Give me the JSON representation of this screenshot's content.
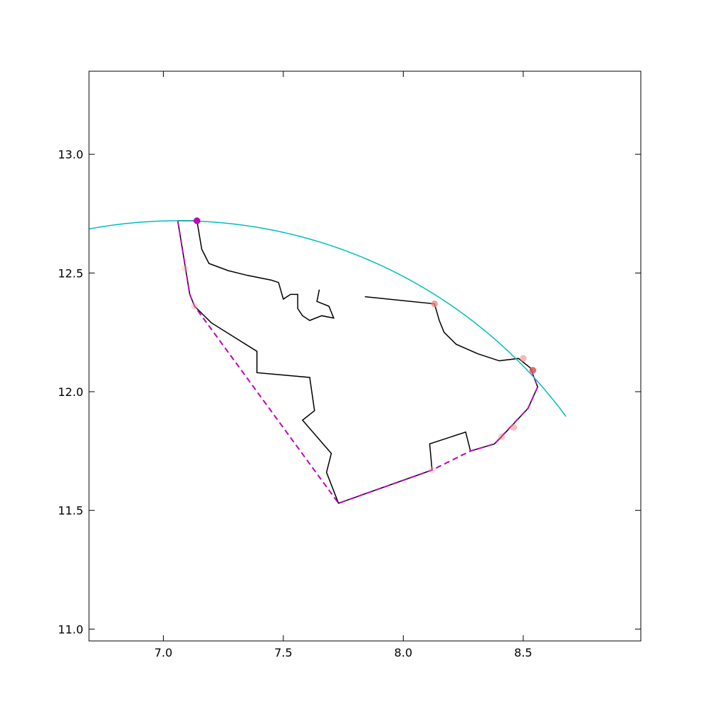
{
  "chart_data": {
    "type": "line",
    "title": "",
    "xlabel": "",
    "ylabel": "",
    "xlim": [
      6.69,
      8.99
    ],
    "ylim": [
      10.95,
      13.35
    ],
    "xticks": [
      7.0,
      7.5,
      8.0,
      8.5
    ],
    "xtick_labels": [
      "7.0",
      "7.5",
      "8.0",
      "8.5"
    ],
    "yticks": [
      11.0,
      11.5,
      12.0,
      12.5,
      13.0
    ],
    "ytick_labels": [
      "11.0",
      "11.5",
      "12.0",
      "12.5",
      "13.0"
    ],
    "grid": false,
    "series": [
      {
        "style": "solid",
        "color": "#000000",
        "paths": [
          [
            [
              7.13,
              12.72
            ],
            [
              7.06,
              12.72
            ],
            [
              7.11,
              12.41
            ],
            [
              7.13,
              12.36
            ],
            [
              7.2,
              12.29
            ],
            [
              7.39,
              12.17
            ],
            [
              7.39,
              12.08
            ],
            [
              7.61,
              12.06
            ],
            [
              7.63,
              11.92
            ],
            [
              7.58,
              11.88
            ],
            [
              7.7,
              11.74
            ],
            [
              7.68,
              11.66
            ],
            [
              7.73,
              11.53
            ],
            [
              8.12,
              11.67
            ],
            [
              8.11,
              11.78
            ],
            [
              8.26,
              11.83
            ],
            [
              8.28,
              11.75
            ],
            [
              8.38,
              11.78
            ],
            [
              8.4,
              11.8
            ],
            [
              8.52,
              11.93
            ],
            [
              8.56,
              12.02
            ],
            [
              8.53,
              12.1
            ],
            [
              8.48,
              12.14
            ],
            [
              8.4,
              12.13
            ],
            [
              8.31,
              12.16
            ],
            [
              8.22,
              12.2
            ],
            [
              8.17,
              12.25
            ],
            [
              8.15,
              12.3
            ],
            [
              8.13,
              12.37
            ],
            [
              7.84,
              12.4
            ]
          ],
          [
            [
              7.14,
              12.72
            ],
            [
              7.16,
              12.6
            ],
            [
              7.19,
              12.54
            ],
            [
              7.27,
              12.51
            ],
            [
              7.35,
              12.49
            ],
            [
              7.45,
              12.47
            ],
            [
              7.48,
              12.46
            ],
            [
              7.5,
              12.39
            ],
            [
              7.53,
              12.41
            ],
            [
              7.56,
              12.41
            ],
            [
              7.56,
              12.35
            ],
            [
              7.58,
              12.32
            ],
            [
              7.61,
              12.3
            ],
            [
              7.66,
              12.32
            ],
            [
              7.71,
              12.31
            ],
            [
              7.69,
              12.36
            ],
            [
              7.64,
              12.38
            ],
            [
              7.65,
              12.43
            ]
          ]
        ]
      },
      {
        "style": "dashed",
        "color": "#bf00bf",
        "points": [
          [
            7.06,
            12.72
          ],
          [
            7.11,
            12.41
          ],
          [
            7.13,
            12.36
          ],
          [
            7.73,
            11.53
          ],
          [
            8.12,
            11.67
          ],
          [
            8.28,
            11.75
          ],
          [
            8.38,
            11.78
          ],
          [
            8.52,
            11.93
          ],
          [
            8.56,
            12.02
          ],
          [
            8.53,
            12.1
          ]
        ]
      },
      {
        "style": "arc",
        "color": "#00bfbf",
        "center": [
          7.06,
          10.72
        ],
        "radius": 2.0
      }
    ],
    "markers": [
      {
        "x": 8.13,
        "y": 12.37,
        "color": "#f08080",
        "opacity": 0.75
      },
      {
        "x": 8.5,
        "y": 12.14,
        "color": "#f08080",
        "opacity": 0.55
      },
      {
        "x": 8.54,
        "y": 12.09,
        "color": "#e05050",
        "opacity": 0.85
      },
      {
        "x": 8.46,
        "y": 11.85,
        "color": "#f08080",
        "opacity": 0.5
      },
      {
        "x": 8.41,
        "y": 11.81,
        "color": "#f08080",
        "opacity": 0.4
      },
      {
        "x": 8.12,
        "y": 11.67,
        "color": "#f0a0a0",
        "opacity": 0.35
      },
      {
        "x": 7.13,
        "y": 12.36,
        "color": "#f0a0a0",
        "opacity": 0.35
      },
      {
        "x": 7.09,
        "y": 12.52,
        "color": "#f0a0a0",
        "opacity": 0.3
      },
      {
        "x": 7.14,
        "y": 12.72,
        "color": "#bf00bf",
        "opacity": 1.0
      }
    ],
    "colors": {
      "axes": "#000000",
      "solid_path": "#000000",
      "dashed_hull": "#bf00bf",
      "arc": "#00bfbf"
    }
  }
}
